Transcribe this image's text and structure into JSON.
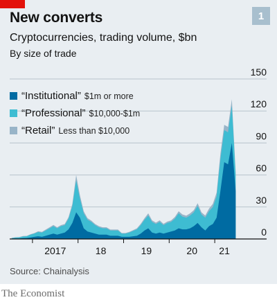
{
  "header": {
    "title": "New converts",
    "subtitle": "Cryptocurrencies, trading volume, $bn",
    "subtitle2": "By size of trade",
    "chart_number": "1"
  },
  "source": "Source: Chainalysis",
  "publisher": "The Economist",
  "colors": {
    "institutional": "#006ba2",
    "professional": "#3ebcd2",
    "retail": "#98b4c8",
    "background": "#e9eef2",
    "brand_red": "#e3120b"
  },
  "chart_data": {
    "type": "area",
    "stacked": true,
    "title": "New converts",
    "subtitle": "Cryptocurrencies, trading volume, $bn",
    "xlabel": "",
    "ylabel": "",
    "ylim": [
      0,
      150
    ],
    "yticks": [
      0,
      30,
      60,
      90,
      120,
      150
    ],
    "xticks": [
      "2017",
      "18",
      "19",
      "20",
      "21"
    ],
    "grid": true,
    "legend_position": "top-left",
    "x": [
      "2016-07",
      "2016-08",
      "2016-09",
      "2016-10",
      "2016-11",
      "2016-12",
      "2017-01",
      "2017-02",
      "2017-03",
      "2017-04",
      "2017-05",
      "2017-06",
      "2017-07",
      "2017-08",
      "2017-09",
      "2017-10",
      "2017-11",
      "2017-12",
      "2018-01",
      "2018-02",
      "2018-03",
      "2018-04",
      "2018-05",
      "2018-06",
      "2018-07",
      "2018-08",
      "2018-09",
      "2018-10",
      "2018-11",
      "2018-12",
      "2019-01",
      "2019-02",
      "2019-03",
      "2019-04",
      "2019-05",
      "2019-06",
      "2019-07",
      "2019-08",
      "2019-09",
      "2019-10",
      "2019-11",
      "2019-12",
      "2020-01",
      "2020-02",
      "2020-03",
      "2020-04",
      "2020-05",
      "2020-06",
      "2020-07",
      "2020-08",
      "2020-09",
      "2020-10",
      "2020-11",
      "2020-12",
      "2021-01",
      "2021-02",
      "2021-03",
      "2021-04",
      "2021-05",
      "2021-06"
    ],
    "series": [
      {
        "name": "Institutional",
        "range_label": "$1m or more",
        "values": [
          0.3,
          0.5,
          0.5,
          0.8,
          1,
          1.5,
          2,
          2.5,
          2,
          3,
          4,
          5,
          4,
          5,
          6,
          9,
          15,
          25,
          20,
          10,
          7,
          6,
          5,
          4,
          4,
          4,
          3,
          3,
          3,
          2,
          2,
          2,
          2.5,
          3,
          5,
          8,
          10,
          6,
          5,
          6,
          5,
          6,
          7,
          8,
          10,
          9,
          9,
          10,
          12,
          15,
          11,
          8,
          12,
          14,
          20,
          45,
          72,
          70,
          90,
          45
        ]
      },
      {
        "name": "Professional",
        "range_label": "$10,000-$1m",
        "values": [
          0.5,
          0.8,
          1,
          1.5,
          1.5,
          2.5,
          3,
          4,
          4,
          5,
          6,
          7,
          6,
          7,
          7,
          10,
          16,
          30,
          18,
          14,
          11,
          10,
          8,
          7,
          6,
          6,
          5,
          5,
          5,
          3,
          3,
          4,
          5,
          6,
          8,
          10,
          12,
          10,
          9,
          10,
          8,
          9,
          9,
          11,
          14,
          12,
          11,
          12,
          13,
          16,
          12,
          12,
          14,
          16,
          20,
          30,
          30,
          30,
          35,
          15
        ]
      },
      {
        "name": "Retail",
        "range_label": "Less than $10,000",
        "values": [
          0.2,
          0.3,
          0.3,
          0.4,
          0.4,
          0.5,
          0.5,
          0.7,
          0.7,
          0.8,
          1,
          1.2,
          1,
          1,
          1,
          1.5,
          2,
          5,
          3,
          2,
          1.5,
          1.2,
          1,
          1,
          1,
          1,
          0.8,
          0.8,
          0.8,
          0.6,
          0.6,
          0.7,
          0.8,
          1,
          1.2,
          1.5,
          2,
          1.5,
          1.3,
          1.5,
          1.2,
          1.3,
          1.4,
          1.6,
          2,
          2,
          1.8,
          2,
          2,
          2.5,
          2,
          2,
          2.5,
          3,
          3.5,
          5,
          5,
          5,
          6,
          3
        ]
      }
    ]
  }
}
